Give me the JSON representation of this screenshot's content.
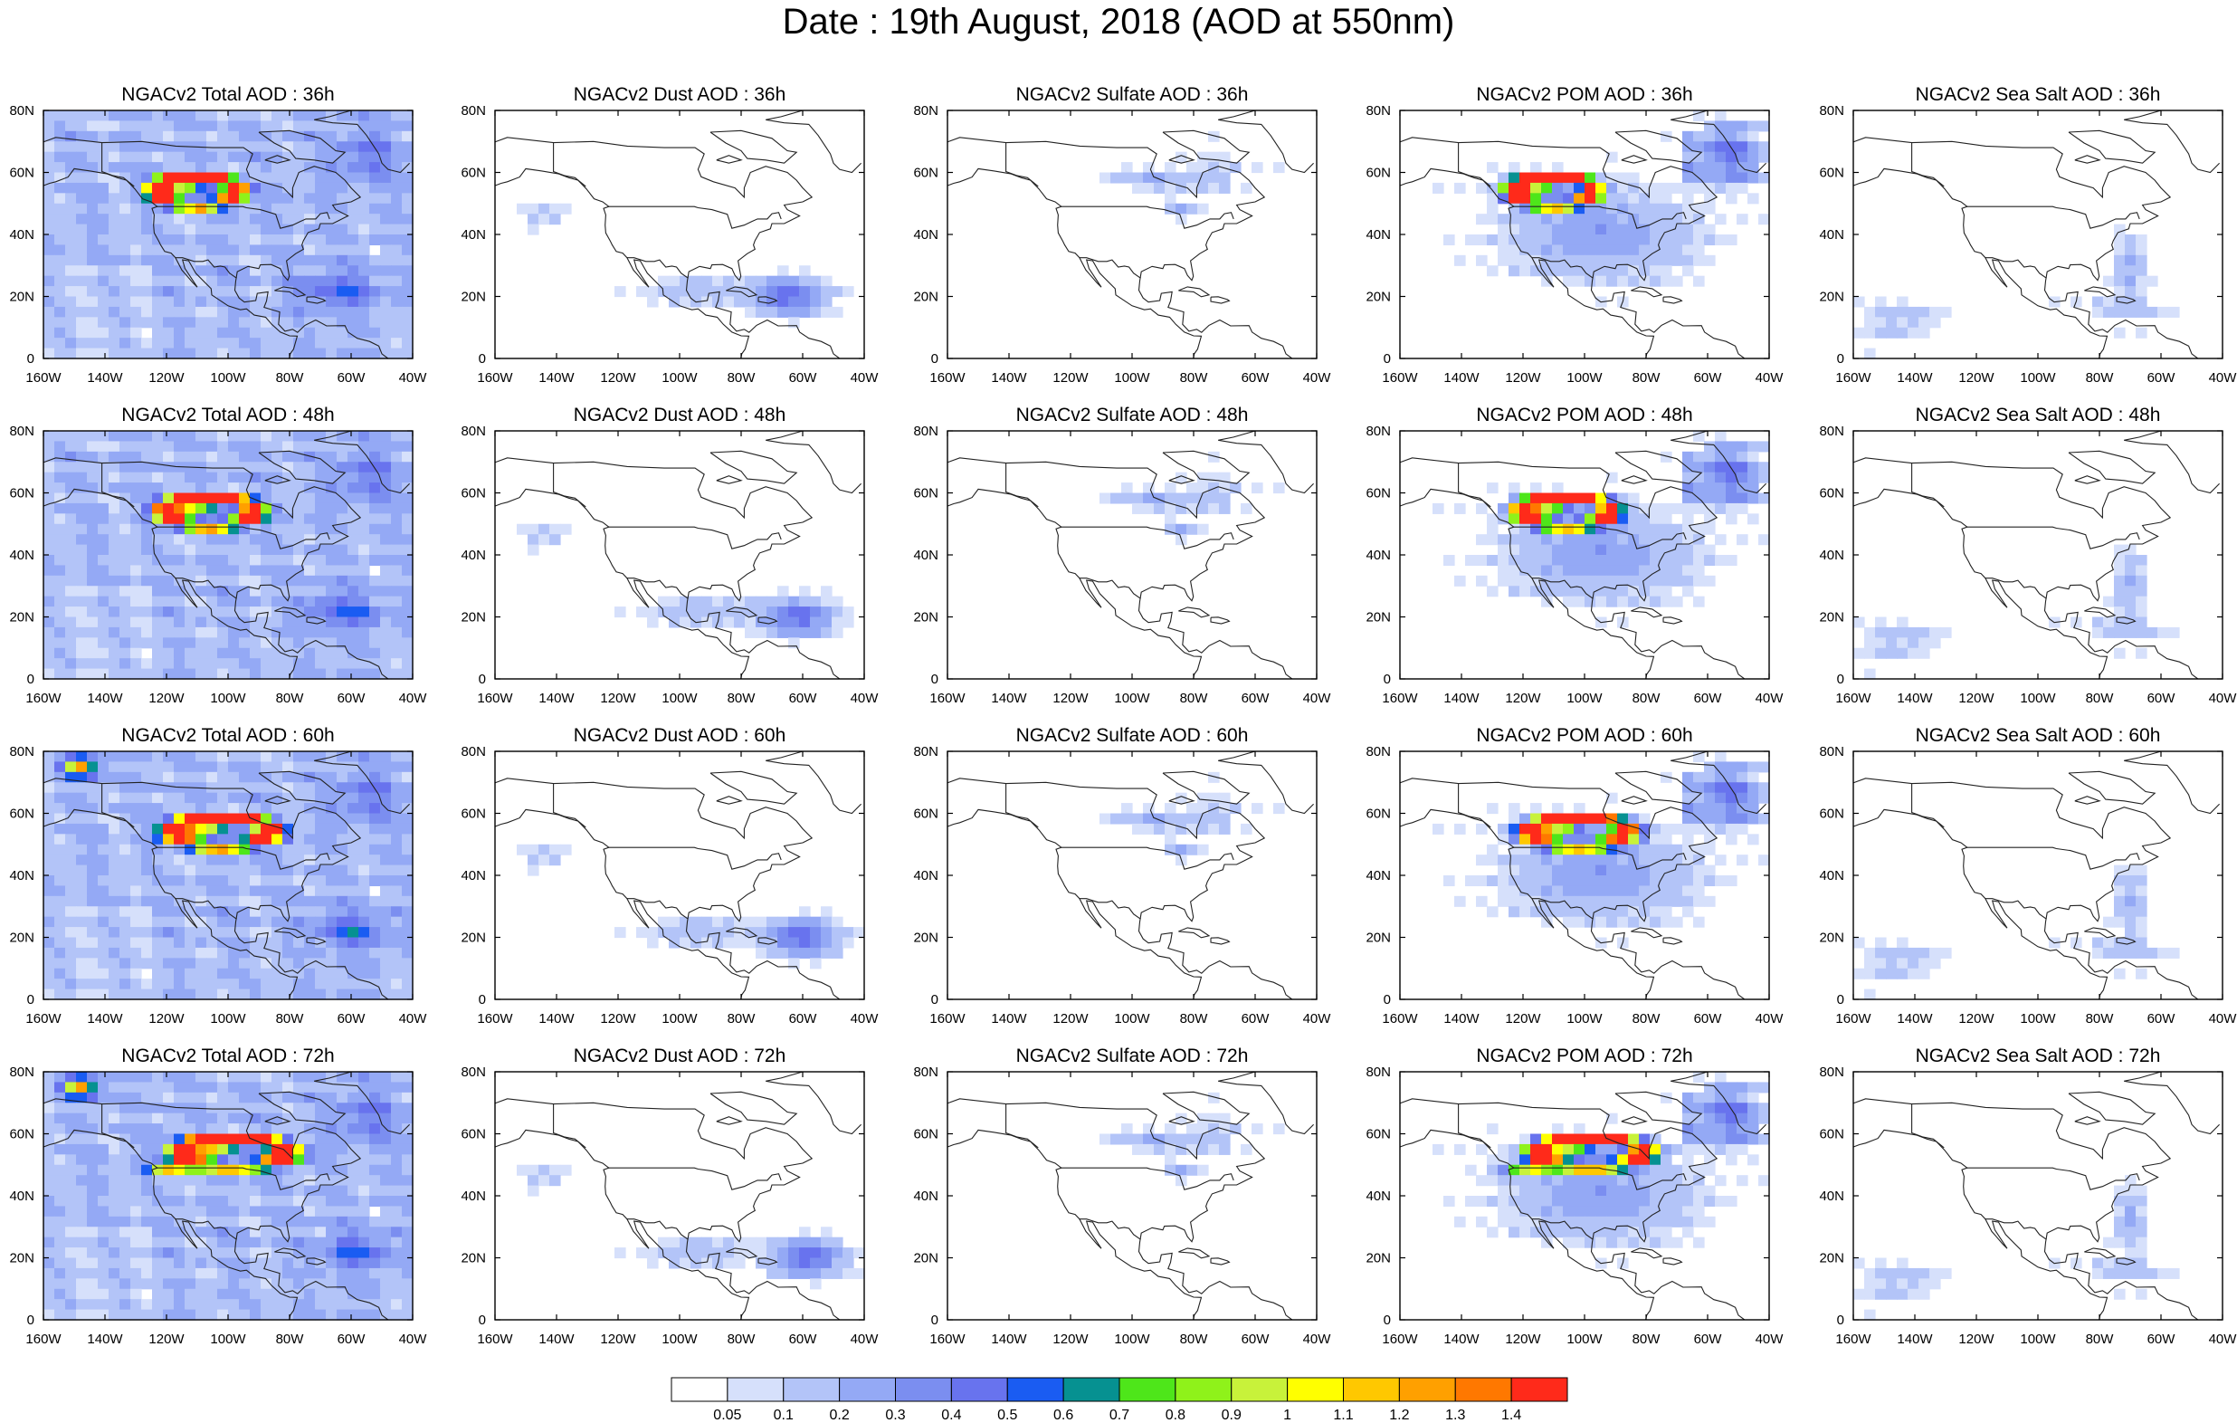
{
  "figure": {
    "title": "Date : 19th August, 2018 (AOD at 550nm)"
  },
  "chart_data": {
    "type": "heatmap",
    "title": "Date : 19th August, 2018 (AOD at 550nm)",
    "layout": "4 rows x 5 columns of map panels",
    "x_ticks": [
      "160W",
      "140W",
      "120W",
      "100W",
      "80W",
      "60W",
      "40W"
    ],
    "y_ticks": [
      "0",
      "20N",
      "40N",
      "60N",
      "80N"
    ],
    "xlim": [
      -160,
      -40
    ],
    "ylim": [
      0,
      80
    ],
    "panels": [
      {
        "title": "NGACv2 Total AOD : 36h",
        "species": "total",
        "hour": 36
      },
      {
        "title": "NGACv2 Dust AOD : 36h",
        "species": "dust",
        "hour": 36
      },
      {
        "title": "NGACv2 Sulfate AOD : 36h",
        "species": "sulfate",
        "hour": 36
      },
      {
        "title": "NGACv2 POM AOD : 36h",
        "species": "pom",
        "hour": 36
      },
      {
        "title": "NGACv2 Sea Salt AOD : 36h",
        "species": "seasalt",
        "hour": 36
      },
      {
        "title": "NGACv2 Total AOD : 48h",
        "species": "total",
        "hour": 48
      },
      {
        "title": "NGACv2 Dust AOD : 48h",
        "species": "dust",
        "hour": 48
      },
      {
        "title": "NGACv2 Sulfate AOD : 48h",
        "species": "sulfate",
        "hour": 48
      },
      {
        "title": "NGACv2 POM AOD : 48h",
        "species": "pom",
        "hour": 48
      },
      {
        "title": "NGACv2 Sea Salt AOD : 48h",
        "species": "seasalt",
        "hour": 48
      },
      {
        "title": "NGACv2 Total AOD : 60h",
        "species": "total",
        "hour": 60
      },
      {
        "title": "NGACv2 Dust AOD : 60h",
        "species": "dust",
        "hour": 60
      },
      {
        "title": "NGACv2 Sulfate AOD : 60h",
        "species": "sulfate",
        "hour": 60
      },
      {
        "title": "NGACv2 POM AOD : 60h",
        "species": "pom",
        "hour": 60
      },
      {
        "title": "NGACv2 Sea Salt AOD : 60h",
        "species": "seasalt",
        "hour": 60
      },
      {
        "title": "NGACv2 Total AOD : 72h",
        "species": "total",
        "hour": 72
      },
      {
        "title": "NGACv2 Dust AOD : 72h",
        "species": "dust",
        "hour": 72
      },
      {
        "title": "NGACv2 Sulfate AOD : 72h",
        "species": "sulfate",
        "hour": 72
      },
      {
        "title": "NGACv2 POM AOD : 72h",
        "species": "pom",
        "hour": 72
      },
      {
        "title": "NGACv2 Sea Salt  AOD : 72h",
        "species": "seasalt",
        "hour": 72
      }
    ],
    "colorbar": {
      "levels": [
        "0.05",
        "0.1",
        "0.2",
        "0.3",
        "0.4",
        "0.5",
        "0.6",
        "0.7",
        "0.8",
        "0.9",
        "1",
        "1.1",
        "1.2",
        "1.3",
        "1.4"
      ],
      "colors": [
        "#ffffff",
        "#d6e0fb",
        "#b3c4f8",
        "#94a9f5",
        "#7b8ef0",
        "#6873ee",
        "#1a5cf2",
        "#069191",
        "#4ee61a",
        "#8ff21a",
        "#c8f23a",
        "#ffff00",
        "#ffc800",
        "#ffa000",
        "#ff7800",
        "#ff2a1a"
      ]
    }
  }
}
